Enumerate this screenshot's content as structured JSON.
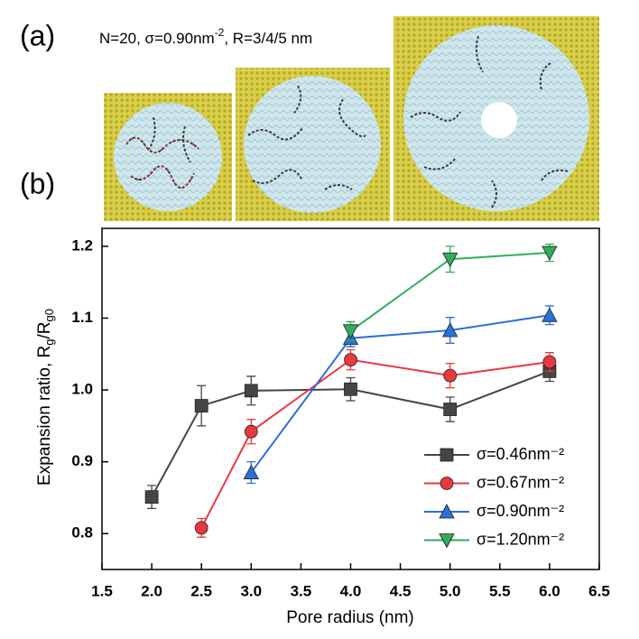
{
  "chart_data": {
    "type": "line",
    "panel_labels": [
      "(a)",
      "(b)"
    ],
    "annotation": [
      "N=20, σ=0.90nm",
      "-2",
      ", R=3/4/5 nm"
    ],
    "xlabel": "Pore radius (nm)",
    "ylabel": [
      "Expansion ratio, R",
      "g",
      "/R",
      "g0"
    ],
    "xlim": [
      1.5,
      6.5
    ],
    "ylim": [
      0.75,
      1.225
    ],
    "xticks": [
      1.5,
      {
        "value": 2,
        "label": "2.0"
      },
      2.5,
      {
        "value": 3,
        "label": "3.0"
      },
      3.5,
      {
        "value": 4,
        "label": "4.0"
      },
      4.5,
      {
        "value": 5,
        "label": "5.0"
      },
      5.5,
      {
        "value": 6,
        "label": "6.0"
      },
      6.5
    ],
    "yticks": [
      0.8,
      0.9,
      {
        "value": 1,
        "label": "1.0"
      },
      1.1,
      1.2
    ],
    "legend": "lower right",
    "series": [
      {
        "name": "σ=0.46nm⁻²",
        "color": "#454545",
        "marker": "square",
        "x": [
          2,
          2.5,
          3,
          4,
          5,
          6
        ],
        "values": [
          0.851,
          0.978,
          0.999,
          1.001,
          0.973,
          1.026
        ],
        "errors": [
          0.016,
          0.028,
          0.02,
          0.016,
          0.017,
          0.014
        ]
      },
      {
        "name": "σ=0.67nm⁻²",
        "color": "#e8393f",
        "marker": "circle",
        "x": [
          2.5,
          3,
          4,
          5,
          6
        ],
        "values": [
          0.808,
          0.942,
          1.042,
          1.02,
          1.039
        ],
        "errors": [
          0.013,
          0.017,
          0.014,
          0.017,
          0.013
        ]
      },
      {
        "name": "σ=0.90nm⁻²",
        "color": "#2b70d8",
        "marker": "triangle-up",
        "x": [
          3,
          4,
          5,
          6
        ],
        "values": [
          0.885,
          1.072,
          1.083,
          1.104
        ],
        "errors": [
          0.015,
          0.012,
          0.018,
          0.013
        ]
      },
      {
        "name": "σ=1.20nm⁻²",
        "color": "#31ad5c",
        "marker": "triangle-down",
        "x": [
          4,
          5,
          6
        ],
        "values": [
          1.082,
          1.182,
          1.191
        ],
        "errors": [
          0.013,
          0.018,
          0.012
        ]
      }
    ]
  }
}
